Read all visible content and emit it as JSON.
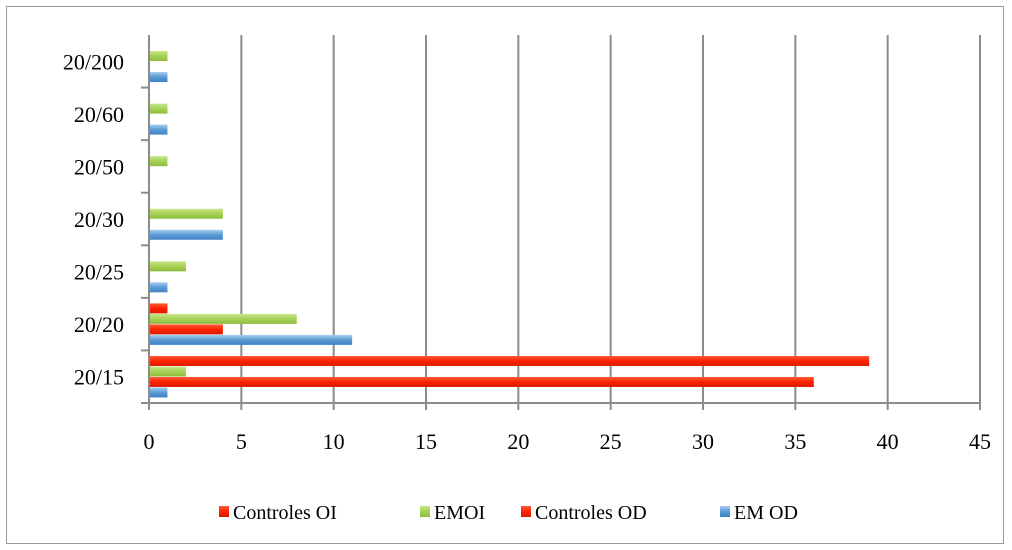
{
  "chart_data": {
    "type": "bar",
    "orientation": "horizontal",
    "categories": [
      "20/15",
      "20/20",
      "20/25",
      "20/30",
      "20/50",
      "20/60",
      "20/200"
    ],
    "series": [
      {
        "name": "Controles OI",
        "color": "#ff2200",
        "values": [
          39,
          1,
          0,
          0,
          0,
          0,
          0
        ]
      },
      {
        "name": "EMOI",
        "color": "#a6d155",
        "values": [
          2,
          8,
          2,
          4,
          1,
          1,
          1
        ]
      },
      {
        "name": "Controles OD",
        "color": "#ff2200",
        "values": [
          36,
          4,
          0,
          0,
          0,
          0,
          0
        ]
      },
      {
        "name": "EM OD",
        "color": "#5b9bd5",
        "values": [
          1,
          11,
          1,
          4,
          0,
          1,
          1
        ]
      }
    ],
    "xlim": [
      0,
      45
    ],
    "xticks": [
      0,
      5,
      10,
      15,
      20,
      25,
      30,
      35,
      40,
      45
    ],
    "grid": "vertical",
    "legend_position": "bottom",
    "title": "",
    "xlabel": "",
    "ylabel": ""
  }
}
